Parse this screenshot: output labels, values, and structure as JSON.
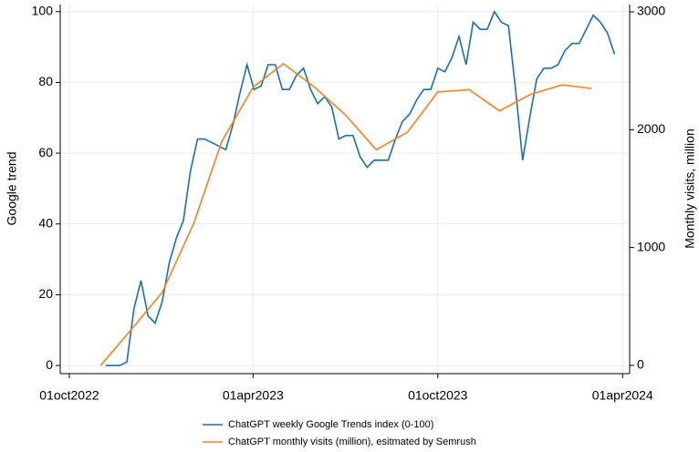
{
  "chart_data": {
    "type": "line",
    "x_label_left": "Google trend",
    "y2_label": "Monthly visits, million",
    "xlim": [
      "2022-09-22",
      "2024-04-08"
    ],
    "xticks": [
      {
        "value": "2022-10-01",
        "label": "01oct2022"
      },
      {
        "value": "2023-04-01",
        "label": "01apr2023"
      },
      {
        "value": "2023-10-01",
        "label": "01oct2023"
      },
      {
        "value": "2024-04-01",
        "label": "01apr2024"
      }
    ],
    "ylabel": "Google trend",
    "ylim": [
      -2.3,
      102
    ],
    "yticks": [
      0,
      20,
      40,
      60,
      80,
      100
    ],
    "y2lim": [
      -70,
      3062
    ],
    "y2ticks": [
      0,
      1000,
      2000,
      3000
    ],
    "grid": true,
    "legend": "bottom",
    "series": [
      {
        "name": "ChatGPT weekly Google Trends index (0-100)",
        "color": "#1a6faf",
        "x": [
          "2022-11-06",
          "2022-11-13",
          "2022-11-20",
          "2022-11-27",
          "2022-12-04",
          "2022-12-11",
          "2022-12-18",
          "2022-12-25",
          "2023-01-01",
          "2023-01-08",
          "2023-01-15",
          "2023-01-22",
          "2023-01-29",
          "2023-02-05",
          "2023-02-12",
          "2023-02-19",
          "2023-02-26",
          "2023-03-05",
          "2023-03-12",
          "2023-03-19",
          "2023-03-26",
          "2023-04-02",
          "2023-04-09",
          "2023-04-16",
          "2023-04-23",
          "2023-04-30",
          "2023-05-07",
          "2023-05-14",
          "2023-05-21",
          "2023-05-28",
          "2023-06-04",
          "2023-06-11",
          "2023-06-18",
          "2023-06-25",
          "2023-07-02",
          "2023-07-09",
          "2023-07-16",
          "2023-07-23",
          "2023-07-30",
          "2023-08-06",
          "2023-08-13",
          "2023-08-20",
          "2023-08-27",
          "2023-09-03",
          "2023-09-10",
          "2023-09-17",
          "2023-09-24",
          "2023-10-01",
          "2023-10-08",
          "2023-10-15",
          "2023-10-22",
          "2023-10-29",
          "2023-11-05",
          "2023-11-12",
          "2023-11-19",
          "2023-11-26",
          "2023-12-03",
          "2023-12-10",
          "2023-12-17",
          "2023-12-24",
          "2023-12-31",
          "2024-01-07",
          "2024-01-14",
          "2024-01-21",
          "2024-01-28",
          "2024-02-04",
          "2024-02-11",
          "2024-02-18",
          "2024-02-25",
          "2024-03-03",
          "2024-03-10",
          "2024-03-17",
          "2024-03-24"
        ],
        "values": [
          0,
          0,
          0,
          1,
          16,
          24,
          14,
          12,
          18,
          29,
          36,
          41,
          55,
          64,
          64,
          63,
          62,
          61,
          68,
          77,
          85,
          78,
          79,
          85,
          85,
          78,
          78,
          82,
          84,
          78,
          74,
          76,
          73,
          64,
          65,
          65,
          59,
          56,
          58,
          58,
          58,
          64,
          69,
          71,
          75,
          78,
          78,
          84,
          83,
          87,
          93,
          85,
          97,
          95,
          95,
          100,
          97,
          96,
          78,
          58,
          70,
          81,
          84,
          84,
          85,
          89,
          91,
          91,
          95,
          99,
          97,
          94,
          88
        ]
      },
      {
        "name": "ChatGPT monthly visits (million), esitmated by Semrush",
        "color": "#f5821f",
        "axis": "y2",
        "x": [
          "2022-11-01",
          "2022-12-01",
          "2023-01-01",
          "2023-02-01",
          "2023-03-01",
          "2023-04-01",
          "2023-05-01",
          "2023-06-01",
          "2023-07-01",
          "2023-08-01",
          "2023-09-01",
          "2023-10-01",
          "2023-11-01",
          "2023-12-01",
          "2024-01-01",
          "2024-02-01",
          "2024-03-01"
        ],
        "values": [
          0,
          300,
          620,
          1200,
          1900,
          2360,
          2560,
          2360,
          2130,
          1830,
          1980,
          2320,
          2340,
          2160,
          2300,
          2380,
          2350
        ]
      }
    ]
  }
}
